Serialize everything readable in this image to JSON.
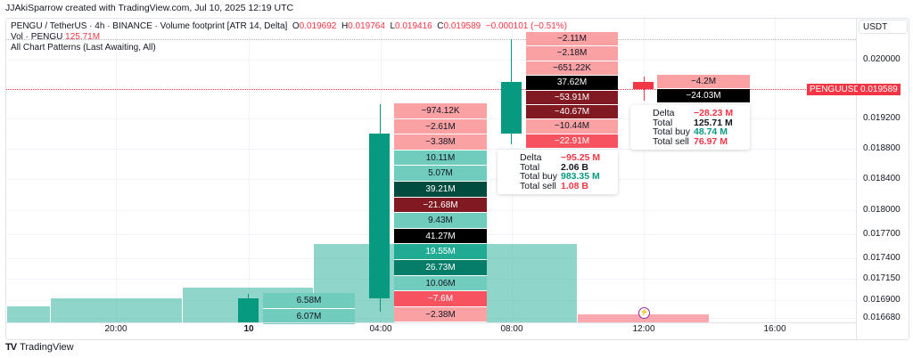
{
  "credit": "JJAkiSparrow created with TradingView.com, Jul 10, 2025 12:19 UTC",
  "legend": {
    "symbol": "PENGU / TetherUS · 4h · BINANCE · Volume footprint [ATR 14, Delta]",
    "o_label": "O",
    "o": "0.019692",
    "h_label": "H",
    "h": "0.019764",
    "l_label": "L",
    "l": "0.019416",
    "c_label": "C",
    "c": "0.019589",
    "change": "−0.000101 (−0.51%)",
    "vol_label": "Vol · PENGU",
    "vol": "125.71M",
    "patterns": "All Chart Patterns (Last Awaiting, All)"
  },
  "currency": "USDT",
  "price_ticks": [
    "0.020000",
    "0.019200",
    "0.018800",
    "0.018400",
    "0.018000",
    "0.017700",
    "0.017400",
    "0.017150",
    "0.016900",
    "0.016680"
  ],
  "time_ticks": [
    "20:00",
    "10",
    "04:00",
    "08:00",
    "12:00",
    "16:00"
  ],
  "last_price": {
    "symbol": "PENGUUSDT",
    "value": "0.019589"
  },
  "colors": {
    "up": "#089981",
    "down": "#f23645"
  },
  "footprints": [
    {
      "rows": [
        [
          "6.58M",
          "lt"
        ],
        [
          "6.07M",
          "lt"
        ]
      ]
    },
    {
      "rows": [
        [
          "−974.12K",
          "lr"
        ],
        [
          "−2.61M",
          "lr"
        ],
        [
          "−3.38M",
          "lr"
        ],
        [
          "10.11M",
          "lt"
        ],
        [
          "5.07M",
          "lt"
        ],
        [
          "39.21M",
          "gg"
        ],
        [
          "−21.68M",
          "dr"
        ],
        [
          "9.43M",
          "lt"
        ],
        [
          "41.27M",
          "bk"
        ],
        [
          "19.55M",
          "mt"
        ],
        [
          "26.73M",
          "dt"
        ],
        [
          "10.06M",
          "lt"
        ],
        [
          "−7.6M",
          "rd"
        ],
        [
          "−2.38M",
          "lr"
        ]
      ]
    },
    {
      "rows": [
        [
          "−2.11M",
          "lr"
        ],
        [
          "−2.18M",
          "lr"
        ],
        [
          "−651.22K",
          "lr"
        ],
        [
          "37.62M",
          "bk"
        ],
        [
          "−53.91M",
          "dr"
        ],
        [
          "−40.67M",
          "dr"
        ],
        [
          "−10.44M",
          "lr"
        ],
        [
          "−22.91M",
          "rd"
        ]
      ]
    },
    {
      "rows": [
        [
          "−4.2M",
          "lr"
        ],
        [
          "−24.03M",
          "bk"
        ]
      ]
    }
  ],
  "tooltips": [
    {
      "delta_label": "Delta",
      "delta": "−95.25 M",
      "total_label": "Total",
      "total": "2.06 B",
      "buy_label": "Total buy",
      "buy": "983.35 M",
      "sell_label": "Total sell",
      "sell": "1.08 B"
    },
    {
      "delta_label": "Delta",
      "delta": "−28.23 M",
      "total_label": "Total",
      "total": "125.71 M",
      "buy_label": "Total buy",
      "buy": "48.74 M",
      "sell_label": "Total sell",
      "sell": "76.97 M"
    }
  ],
  "footer": {
    "brand": "TradingView"
  }
}
